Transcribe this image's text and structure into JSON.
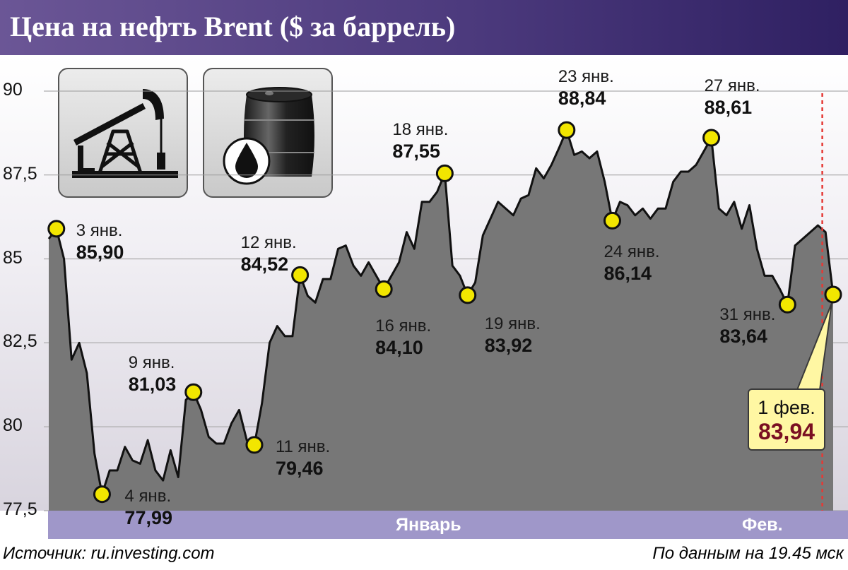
{
  "header": {
    "title": "Цена на нефть Brent ($ за баррель)"
  },
  "footer": {
    "source": "Источник: ru.investing.com",
    "asof": "По данным на 19.45 мск"
  },
  "axis": {
    "months": [
      "Январь",
      "Фев."
    ]
  },
  "icons": [
    "oil-pump-icon",
    "oil-barrel-icon"
  ],
  "colors": {
    "header": "#4c3a7d",
    "area": "#777777",
    "marker": "#f2e600",
    "axis_band": "#9f97c9",
    "callout_bg": "#fff7a3",
    "callout_value": "#7a0f22",
    "marker_line": "#e53935"
  },
  "chart_data": {
    "type": "area",
    "title": "Цена на нефть Brent ($ за баррель)",
    "ylim": [
      77.5,
      90
    ],
    "yticks": [
      "90",
      "87,5",
      "85",
      "82,5",
      "80",
      "77,5"
    ],
    "ytick_values": [
      90,
      87.5,
      85,
      82.5,
      80,
      77.5
    ],
    "grid": true,
    "points": [
      {
        "d": 0,
        "v": 85.6
      },
      {
        "d": 1,
        "v": 85.9
      },
      {
        "d": 2,
        "v": 85.0
      },
      {
        "d": 3,
        "v": 82.0
      },
      {
        "d": 4,
        "v": 82.5
      },
      {
        "d": 5,
        "v": 81.6
      },
      {
        "d": 6,
        "v": 79.2
      },
      {
        "d": 7,
        "v": 77.99
      },
      {
        "d": 8,
        "v": 78.7
      },
      {
        "d": 9,
        "v": 78.7
      },
      {
        "d": 10,
        "v": 79.4
      },
      {
        "d": 11,
        "v": 79.0
      },
      {
        "d": 12,
        "v": 78.9
      },
      {
        "d": 13,
        "v": 79.6
      },
      {
        "d": 14,
        "v": 78.7
      },
      {
        "d": 15,
        "v": 78.4
      },
      {
        "d": 16,
        "v": 79.3
      },
      {
        "d": 17,
        "v": 78.5
      },
      {
        "d": 18,
        "v": 80.8
      },
      {
        "d": 19,
        "v": 81.03
      },
      {
        "d": 20,
        "v": 80.5
      },
      {
        "d": 21,
        "v": 79.7
      },
      {
        "d": 22,
        "v": 79.5
      },
      {
        "d": 23,
        "v": 79.5
      },
      {
        "d": 24,
        "v": 80.1
      },
      {
        "d": 25,
        "v": 80.5
      },
      {
        "d": 26,
        "v": 79.6
      },
      {
        "d": 27,
        "v": 79.46
      },
      {
        "d": 28,
        "v": 80.7
      },
      {
        "d": 29,
        "v": 82.5
      },
      {
        "d": 30,
        "v": 83.0
      },
      {
        "d": 31,
        "v": 82.7
      },
      {
        "d": 32,
        "v": 82.7
      },
      {
        "d": 33,
        "v": 84.52
      },
      {
        "d": 34,
        "v": 83.9
      },
      {
        "d": 35,
        "v": 83.7
      },
      {
        "d": 36,
        "v": 84.4
      },
      {
        "d": 37,
        "v": 84.4
      },
      {
        "d": 38,
        "v": 85.3
      },
      {
        "d": 39,
        "v": 85.4
      },
      {
        "d": 40,
        "v": 84.8
      },
      {
        "d": 41,
        "v": 84.5
      },
      {
        "d": 42,
        "v": 84.9
      },
      {
        "d": 43,
        "v": 84.5
      },
      {
        "d": 44,
        "v": 84.1
      },
      {
        "d": 45,
        "v": 84.5
      },
      {
        "d": 46,
        "v": 84.9
      },
      {
        "d": 47,
        "v": 85.8
      },
      {
        "d": 48,
        "v": 85.3
      },
      {
        "d": 49,
        "v": 86.7
      },
      {
        "d": 50,
        "v": 86.7
      },
      {
        "d": 51,
        "v": 87.0
      },
      {
        "d": 52,
        "v": 87.55
      },
      {
        "d": 53,
        "v": 84.8
      },
      {
        "d": 54,
        "v": 84.5
      },
      {
        "d": 55,
        "v": 83.92
      },
      {
        "d": 56,
        "v": 84.3
      },
      {
        "d": 57,
        "v": 85.7
      },
      {
        "d": 58,
        "v": 86.2
      },
      {
        "d": 59,
        "v": 86.7
      },
      {
        "d": 60,
        "v": 86.5
      },
      {
        "d": 61,
        "v": 86.3
      },
      {
        "d": 62,
        "v": 86.8
      },
      {
        "d": 63,
        "v": 86.9
      },
      {
        "d": 64,
        "v": 87.7
      },
      {
        "d": 65,
        "v": 87.4
      },
      {
        "d": 66,
        "v": 87.8
      },
      {
        "d": 67,
        "v": 88.3
      },
      {
        "d": 68,
        "v": 88.84
      },
      {
        "d": 69,
        "v": 88.1
      },
      {
        "d": 70,
        "v": 88.2
      },
      {
        "d": 71,
        "v": 88.0
      },
      {
        "d": 72,
        "v": 88.2
      },
      {
        "d": 73,
        "v": 87.3
      },
      {
        "d": 74,
        "v": 86.14
      },
      {
        "d": 75,
        "v": 86.7
      },
      {
        "d": 76,
        "v": 86.6
      },
      {
        "d": 77,
        "v": 86.3
      },
      {
        "d": 78,
        "v": 86.5
      },
      {
        "d": 79,
        "v": 86.2
      },
      {
        "d": 80,
        "v": 86.5
      },
      {
        "d": 81,
        "v": 86.5
      },
      {
        "d": 82,
        "v": 87.3
      },
      {
        "d": 83,
        "v": 87.6
      },
      {
        "d": 84,
        "v": 87.6
      },
      {
        "d": 85,
        "v": 87.8
      },
      {
        "d": 86,
        "v": 88.2
      },
      {
        "d": 87,
        "v": 88.61
      },
      {
        "d": 88,
        "v": 86.5
      },
      {
        "d": 89,
        "v": 86.3
      },
      {
        "d": 90,
        "v": 86.7
      },
      {
        "d": 91,
        "v": 85.9
      },
      {
        "d": 92,
        "v": 86.6
      },
      {
        "d": 93,
        "v": 85.3
      },
      {
        "d": 94,
        "v": 84.5
      },
      {
        "d": 95,
        "v": 84.5
      },
      {
        "d": 96,
        "v": 84.1
      },
      {
        "d": 97,
        "v": 83.64
      },
      {
        "d": 98,
        "v": 85.4
      },
      {
        "d": 99,
        "v": 85.6
      },
      {
        "d": 100,
        "v": 85.8
      },
      {
        "d": 101,
        "v": 86.0
      },
      {
        "d": 102,
        "v": 85.8
      },
      {
        "d": 103,
        "v": 83.94
      }
    ],
    "markers": [
      {
        "d": 1,
        "date": "3 янв.",
        "value": "85,90"
      },
      {
        "d": 7,
        "date": "4 янв.",
        "value": "77,99"
      },
      {
        "d": 19,
        "date": "9 янв.",
        "value": "81,03"
      },
      {
        "d": 27,
        "date": "11 янв.",
        "value": "79,46"
      },
      {
        "d": 33,
        "date": "12 янв.",
        "value": "84,52"
      },
      {
        "d": 44,
        "date": "16 янв.",
        "value": "84,10"
      },
      {
        "d": 52,
        "date": "18 янв.",
        "value": "87,55"
      },
      {
        "d": 55,
        "date": "19 янв.",
        "value": "83,92"
      },
      {
        "d": 68,
        "date": "23 янв.",
        "value": "88,84"
      },
      {
        "d": 74,
        "date": "24 янв.",
        "value": "86,14"
      },
      {
        "d": 87,
        "date": "27 янв.",
        "value": "88,61"
      },
      {
        "d": 97,
        "date": "31 янв.",
        "value": "83,64"
      },
      {
        "d": 103,
        "date": "1 фев.",
        "value": "83,94"
      }
    ]
  }
}
